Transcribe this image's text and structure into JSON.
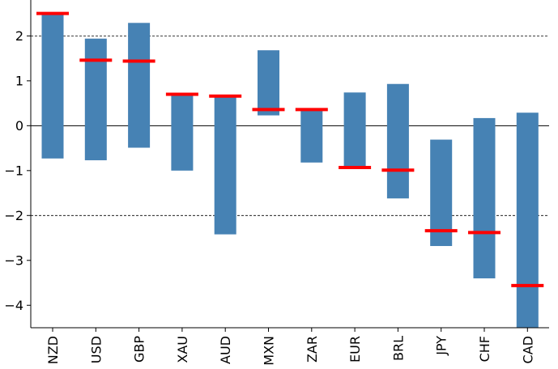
{
  "chart_data": {
    "type": "bar",
    "title": "",
    "xlabel": "",
    "ylabel": "",
    "ylim": [
      -4.5,
      2.8
    ],
    "yticks": [
      2,
      1,
      0,
      -1,
      -2,
      -3,
      -4
    ],
    "ytick_labels": [
      "2",
      "1",
      "0",
      "−1",
      "−2",
      "−3",
      "−4"
    ],
    "grid_lines": [
      2,
      -2
    ],
    "zero_line": 0,
    "categories": [
      "NZD",
      "USD",
      "GBP",
      "XAU",
      "AUD",
      "MXN",
      "ZAR",
      "EUR",
      "BRL",
      "JPY",
      "CHF",
      "CAD"
    ],
    "series": [
      {
        "kind": "range_bar",
        "color": "#4682b4",
        "low": [
          -0.73,
          -0.77,
          -0.49,
          -1.0,
          -2.42,
          0.23,
          -0.82,
          -0.92,
          -1.62,
          -2.68,
          -3.4,
          -4.6
        ],
        "high": [
          2.5,
          1.94,
          2.29,
          0.73,
          0.66,
          1.68,
          0.34,
          0.74,
          0.93,
          -0.31,
          0.17,
          0.29
        ]
      },
      {
        "kind": "marker",
        "color": "#ff0000",
        "values": [
          2.5,
          1.46,
          1.44,
          0.7,
          0.66,
          0.36,
          0.36,
          -0.93,
          -0.99,
          -2.34,
          -2.38,
          -3.56
        ]
      }
    ]
  }
}
